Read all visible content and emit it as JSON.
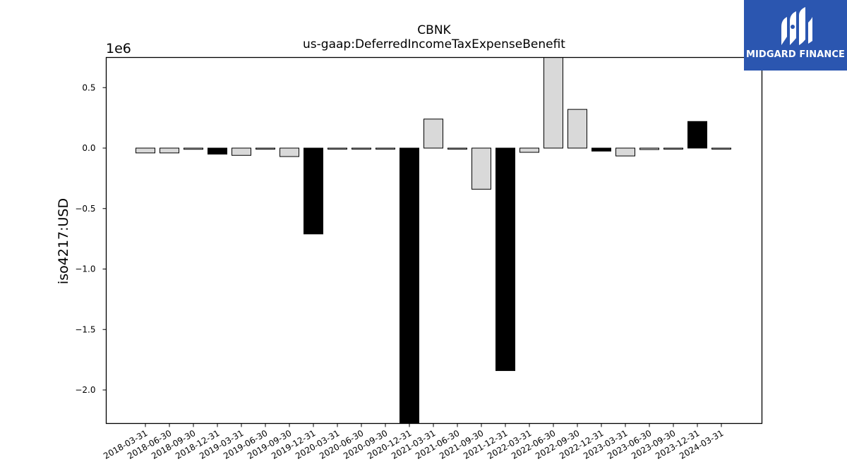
{
  "logo": {
    "text": "MIDGARD FINANCE",
    "background": "#2b56b0"
  },
  "chart_data": {
    "type": "bar",
    "title": "CBNK",
    "subtitle": "us-gaap:DeferredIncomeTaxExpenseBenefit",
    "ylabel": "iso4217:USD",
    "y_offset_label": "1e6",
    "ylim": [
      -2.25,
      0.75
    ],
    "yticks": [
      0.5,
      0.0,
      -0.5,
      -1.0,
      -1.5,
      -2.0
    ],
    "ytick_labels": [
      "0.5",
      "0.0",
      "−0.5",
      "−1.0",
      "−1.5",
      "−2.0"
    ],
    "categories": [
      "2018-03-31",
      "2018-06-30",
      "2018-09-30",
      "2018-12-31",
      "2019-03-31",
      "2019-06-30",
      "2019-09-30",
      "2019-12-31",
      "2020-03-31",
      "2020-06-30",
      "2020-09-30",
      "2020-12-31",
      "2021-03-31",
      "2021-06-30",
      "2021-09-30",
      "2021-12-31",
      "2022-03-31",
      "2022-06-30",
      "2022-09-30",
      "2022-12-31",
      "2023-03-31",
      "2023-06-30",
      "2023-09-30",
      "2023-12-31",
      "2024-03-31"
    ],
    "values": [
      -0.04,
      -0.04,
      -0.01,
      -0.05,
      -0.06,
      -0.005,
      -0.07,
      -0.71,
      -0.003,
      -0.003,
      -0.003,
      -2.3,
      0.24,
      -0.003,
      -0.34,
      -1.84,
      -0.035,
      0.8,
      0.32,
      -0.025,
      -0.065,
      -0.012,
      -0.003,
      0.22,
      -0.005
    ],
    "fiscal_year_end": [
      false,
      false,
      false,
      true,
      false,
      false,
      false,
      true,
      false,
      false,
      false,
      true,
      false,
      false,
      false,
      true,
      false,
      false,
      false,
      true,
      false,
      false,
      false,
      true,
      false
    ],
    "colors": {
      "annual": "#000000",
      "quarterly": "#d9d9d9",
      "edge": "#000000"
    },
    "grid": false,
    "legend": "none"
  }
}
